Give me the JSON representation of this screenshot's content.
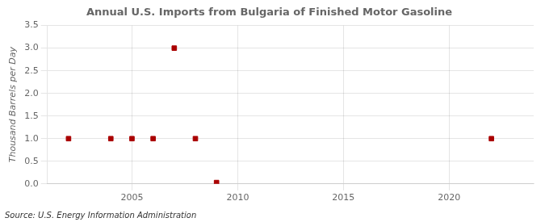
{
  "chart_data": {
    "type": "scatter",
    "title": "Annual U.S. Imports from Bulgaria of Finished Motor Gasoline",
    "ylabel": "Thousand Barrels per Day",
    "annotation": "Source: U.S. Energy Information Administration",
    "x": [
      2002,
      2004,
      2005,
      2006,
      2007,
      2008,
      2009,
      2022
    ],
    "values": [
      1.0,
      1.0,
      1.0,
      1.0,
      3.0,
      1.0,
      0.03,
      1.0
    ],
    "color": "#aa0000",
    "marker": "square",
    "xlim": [
      2001,
      2024
    ],
    "xticks": [
      2005,
      2010,
      2015,
      2020
    ],
    "ylim": [
      0.0,
      3.5
    ],
    "yticks": [
      {
        "value": 0.0,
        "label": "0.0"
      },
      0.5,
      {
        "value": 1.0,
        "label": "1.0"
      },
      1.5,
      {
        "value": 2.0,
        "label": "2.0"
      },
      2.5,
      {
        "value": 3.0,
        "label": "3.0"
      },
      3.5
    ],
    "grid": true
  }
}
